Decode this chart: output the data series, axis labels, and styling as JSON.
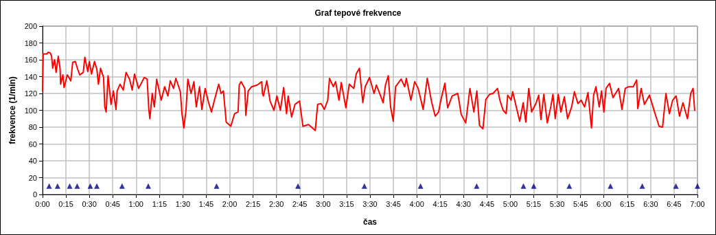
{
  "chart_data": {
    "type": "line",
    "title": "Graf tepové frekvence",
    "xlabel": "čas",
    "ylabel": "frekvence (1/min)",
    "xlim": [
      0,
      7
    ],
    "xticks": [
      {
        "value": 0,
        "label": "0:00"
      },
      {
        "value": 0.25,
        "label": "0:15"
      },
      {
        "value": 0.5,
        "label": "0:30"
      },
      {
        "value": 0.75,
        "label": "0:45"
      },
      {
        "value": 1,
        "label": "1:00"
      },
      {
        "value": 1.25,
        "label": "1:15"
      },
      {
        "value": 1.5,
        "label": "1:30"
      },
      {
        "value": 1.75,
        "label": "1:45"
      },
      {
        "value": 2,
        "label": "2:00"
      },
      {
        "value": 2.25,
        "label": "2:15"
      },
      {
        "value": 2.5,
        "label": "2:30"
      },
      {
        "value": 2.75,
        "label": "2:45"
      },
      {
        "value": 3,
        "label": "3:00"
      },
      {
        "value": 3.25,
        "label": "3:15"
      },
      {
        "value": 3.5,
        "label": "3:30"
      },
      {
        "value": 3.75,
        "label": "3:45"
      },
      {
        "value": 4,
        "label": "4:00"
      },
      {
        "value": 4.25,
        "label": "4:15"
      },
      {
        "value": 4.5,
        "label": "4:30"
      },
      {
        "value": 4.75,
        "label": "4:45"
      },
      {
        "value": 5,
        "label": "5:00"
      },
      {
        "value": 5.25,
        "label": "5:15"
      },
      {
        "value": 5.5,
        "label": "5:30"
      },
      {
        "value": 5.75,
        "label": "5:45"
      },
      {
        "value": 6,
        "label": "6:00"
      },
      {
        "value": 6.25,
        "label": "6:15"
      },
      {
        "value": 6.5,
        "label": "6:30"
      },
      {
        "value": 6.75,
        "label": "6:45"
      },
      {
        "value": 7,
        "label": "7:00"
      }
    ],
    "ylim": [
      0,
      200
    ],
    "yticks": [
      0,
      20,
      40,
      60,
      80,
      100,
      120,
      140,
      160,
      180,
      200
    ],
    "grid": true,
    "series": [
      {
        "color": "#ff0000",
        "marker": "none",
        "line_style": "solid",
        "x": [
          0,
          0.007,
          0.048,
          0.06,
          0.083,
          0.097,
          0.108,
          0.128,
          0.145,
          0.168,
          0.187,
          0.193,
          0.217,
          0.23,
          0.265,
          0.302,
          0.322,
          0.35,
          0.375,
          0.398,
          0.435,
          0.452,
          0.483,
          0.5,
          0.523,
          0.555,
          0.58,
          0.597,
          0.62,
          0.652,
          0.665,
          0.68,
          0.7,
          0.732,
          0.757,
          0.785,
          0.797,
          0.828,
          0.862,
          0.893,
          0.93,
          0.958,
          0.983,
          1.027,
          1.087,
          1.118,
          1.135,
          1.147,
          1.172,
          1.195,
          1.22,
          1.268,
          1.305,
          1.34,
          1.365,
          1.4,
          1.425,
          1.473,
          1.49,
          1.51,
          1.533,
          1.553,
          1.587,
          1.618,
          1.643,
          1.678,
          1.703,
          1.738,
          1.775,
          1.805,
          1.837,
          1.883,
          1.908,
          1.933,
          1.963,
          2.012,
          2.053,
          2.09,
          2.102,
          2.122,
          2.162,
          2.173,
          2.198,
          2.235,
          2.295,
          2.343,
          2.35,
          2.36,
          2.397,
          2.432,
          2.473,
          2.505,
          2.542,
          2.577,
          2.608,
          2.625,
          2.662,
          2.698,
          2.747,
          2.783,
          2.843,
          2.915,
          2.94,
          2.977,
          3.012,
          3.048,
          3.067,
          3.108,
          3.132,
          3.168,
          3.193,
          3.242,
          3.278,
          3.327,
          3.352,
          3.387,
          3.423,
          3.448,
          3.495,
          3.543,
          3.568,
          3.617,
          3.64,
          3.665,
          3.695,
          3.72,
          3.748,
          3.773,
          3.833,
          3.87,
          3.888,
          3.937,
          3.978,
          4.015,
          4.068,
          4.112,
          4.16,
          4.197,
          4.233,
          4.257,
          4.3,
          4.33,
          4.378,
          4.438,
          4.475,
          4.523,
          4.568,
          4.61,
          4.642,
          4.67,
          4.707,
          4.738,
          4.778,
          4.815,
          4.863,
          4.888,
          4.923,
          4.955,
          4.972,
          5.008,
          5.025,
          5.057,
          5.1,
          5.137,
          5.165,
          5.197,
          5.227,
          5.273,
          5.303,
          5.327,
          5.358,
          5.395,
          5.432,
          5.455,
          5.48,
          5.512,
          5.54,
          5.577,
          5.612,
          5.655,
          5.685,
          5.722,
          5.757,
          5.793,
          5.83,
          5.867,
          5.89,
          5.915,
          5.95,
          5.975,
          6,
          6.023,
          6.06,
          6.097,
          6.157,
          6.193,
          6.228,
          6.265,
          6.313,
          6.35,
          6.362,
          6.398,
          6.433,
          6.487,
          6.525,
          6.555,
          6.59,
          6.627,
          6.663,
          6.7,
          6.735,
          6.772,
          6.808,
          6.845,
          6.893,
          6.928,
          6.953,
          6.97
        ],
        "values": [
          123,
          167,
          167,
          169,
          168,
          164,
          150,
          160,
          145,
          164,
          150,
          131,
          142,
          127,
          142,
          135,
          157,
          158,
          149,
          142,
          145,
          163,
          146,
          158,
          143,
          158,
          149,
          131,
          150,
          139,
          104,
          98,
          141,
          107,
          123,
          101,
          123,
          131,
          124,
          145,
          137,
          124,
          143,
          126,
          139,
          137,
          102,
          90,
          120,
          104,
          137,
          112,
          128,
          117,
          135,
          126,
          138,
          122,
          96,
          79,
          100,
          137,
          120,
          134,
          104,
          128,
          101,
          126,
          109,
          98,
          112,
          131,
          120,
          123,
          86,
          81,
          96,
          98,
          130,
          134,
          126,
          94,
          123,
          128,
          130,
          134,
          120,
          117,
          135,
          111,
          100,
          117,
          100,
          127,
          96,
          117,
          92,
          107,
          111,
          81,
          83,
          76,
          107,
          108,
          101,
          112,
          138,
          128,
          134,
          112,
          133,
          103,
          131,
          126,
          143,
          150,
          109,
          128,
          139,
          120,
          130,
          116,
          109,
          130,
          141,
          104,
          87,
          128,
          137,
          128,
          138,
          112,
          134,
          126,
          101,
          138,
          109,
          93,
          98,
          112,
          132,
          103,
          117,
          120,
          95,
          85,
          126,
          98,
          123,
          82,
          78,
          113,
          119,
          120,
          126,
          112,
          100,
          96,
          118,
          112,
          122,
          107,
          87,
          109,
          86,
          126,
          98,
          108,
          118,
          89,
          119,
          85,
          104,
          119,
          90,
          119,
          98,
          116,
          90,
          104,
          122,
          108,
          112,
          104,
          121,
          79,
          118,
          128,
          104,
          123,
          98,
          126,
          132,
          115,
          126,
          101,
          126,
          128,
          128,
          136,
          102,
          126,
          107,
          118,
          104,
          93,
          81,
          80,
          120,
          96,
          112,
          117,
          93,
          109,
          90,
          120,
          126,
          100
        ]
      },
      {
        "type": "scatter",
        "color": "#000080",
        "marker": "triangle",
        "x": [
          0.07,
          0.16,
          0.29,
          0.37,
          0.51,
          0.58,
          0.85,
          1.13,
          1.86,
          2.73,
          3.44,
          4.04,
          4.64,
          5.14,
          5.25,
          5.63,
          6.07,
          6.41,
          6.77,
          7
        ],
        "values": [
          10,
          10,
          10,
          10,
          10,
          10,
          10,
          10,
          10,
          10,
          10,
          10,
          10,
          10,
          10,
          10,
          10,
          10,
          10,
          10
        ]
      }
    ]
  }
}
